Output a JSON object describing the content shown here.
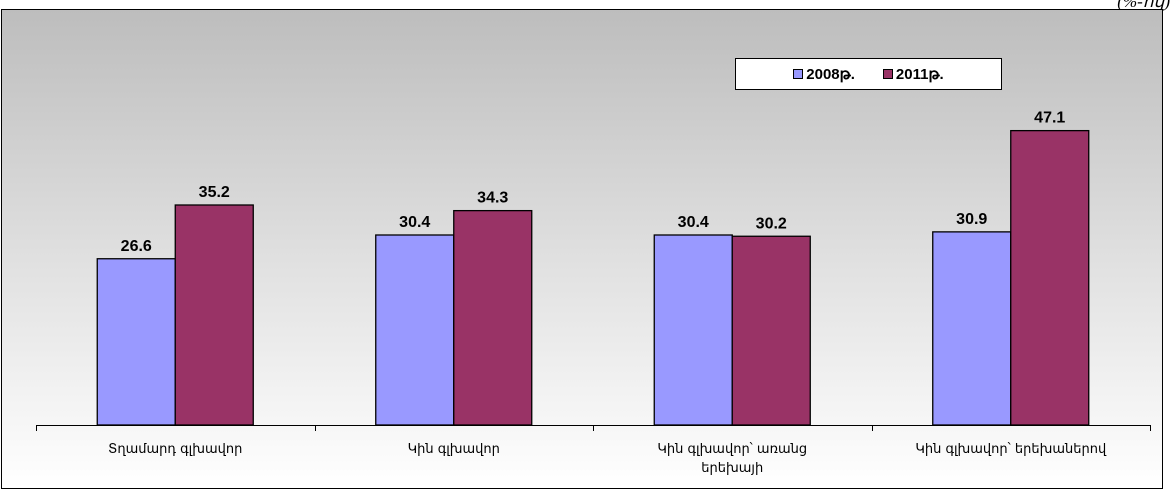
{
  "corner_note": "(%-ով)",
  "chart_data": {
    "type": "bar",
    "categories": [
      [
        "Տղամարդ գլխավոր"
      ],
      [
        "Կին գլխավոր"
      ],
      [
        "Կին գլխավոր՝ առանց",
        "երեխայի"
      ],
      [
        "Կին գլխավոր՝ երեխաներով"
      ]
    ],
    "series": [
      {
        "name": "2008թ.",
        "values": [
          26.6,
          30.4,
          30.4,
          30.9
        ],
        "color": "#9999ff"
      },
      {
        "name": "2011թ.",
        "values": [
          35.2,
          34.3,
          30.2,
          47.1
        ],
        "color": "#993366"
      }
    ],
    "value_labels": [
      [
        "26.6",
        "30.4",
        "30.4",
        "30.9"
      ],
      [
        "35.2",
        "34.3",
        "30.2",
        "47.1"
      ]
    ],
    "ylim": [
      0,
      52
    ],
    "grid": false,
    "legend_position": "top-right"
  }
}
